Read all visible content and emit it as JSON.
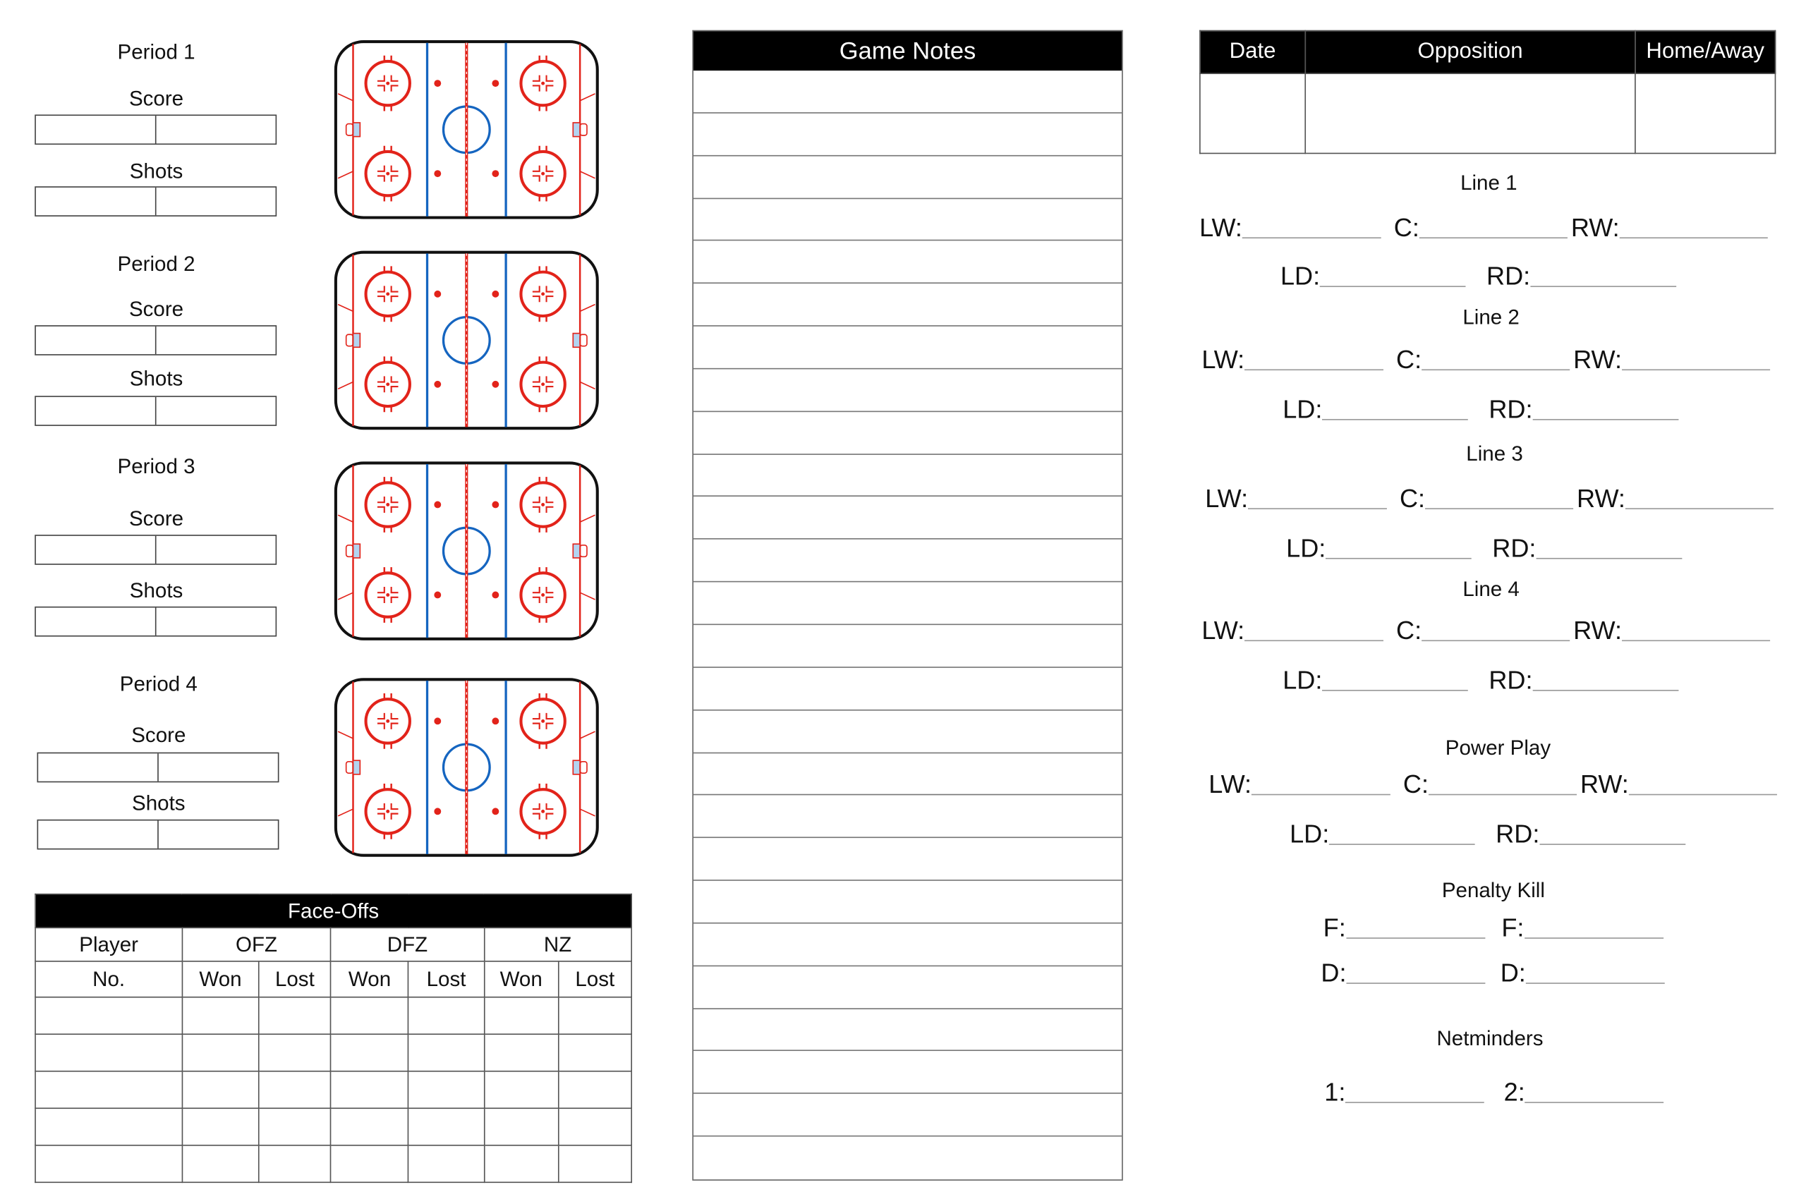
{
  "periods": [
    {
      "title": "Period 1",
      "score_label": "Score",
      "shots_label": "Shots"
    },
    {
      "title": "Period 2",
      "score_label": "Score",
      "shots_label": "Shots"
    },
    {
      "title": "Period 3",
      "score_label": "Score",
      "shots_label": "Shots"
    },
    {
      "title": "Period 4",
      "score_label": "Score",
      "shots_label": "Shots"
    }
  ],
  "rink_colors": {
    "red": "#e2231a",
    "blue": "#1565c0",
    "border": "#111111",
    "crease": "#b3d4f0"
  },
  "faceoffs": {
    "title": "Face-Offs",
    "player_label": "Player",
    "no_label": "No.",
    "zones": [
      "OFZ",
      "DFZ",
      "NZ"
    ],
    "won_label": "Won",
    "lost_label": "Lost"
  },
  "game_notes": {
    "title": "Game Notes"
  },
  "game_info": {
    "headers": [
      "Date",
      "Opposition",
      "Home/Away"
    ]
  },
  "lines": [
    {
      "title": "Line 1",
      "fwd": [
        "LW:",
        "C:",
        "RW:"
      ],
      "def": [
        "LD:",
        "RD:"
      ]
    },
    {
      "title": "Line 2",
      "fwd": [
        "LW:",
        "C:",
        "RW:"
      ],
      "def": [
        "LD:",
        "RD:"
      ]
    },
    {
      "title": "Line 3",
      "fwd": [
        "LW:",
        "C:",
        "RW:"
      ],
      "def": [
        "LD:",
        "RD:"
      ]
    },
    {
      "title": "Line 4",
      "fwd": [
        "LW:",
        "C:",
        "RW:"
      ],
      "def": [
        "LD:",
        "RD:"
      ]
    },
    {
      "title": "Power Play",
      "fwd": [
        "LW:",
        "C:",
        "RW:"
      ],
      "def": [
        "LD:",
        "RD:"
      ]
    }
  ],
  "penalty_kill": {
    "title": "Penalty Kill",
    "f": [
      "F:",
      "F:"
    ],
    "d": [
      "D:",
      "D:"
    ]
  },
  "netminders": {
    "title": "Netminders",
    "slots": [
      "1:",
      "2:"
    ]
  }
}
